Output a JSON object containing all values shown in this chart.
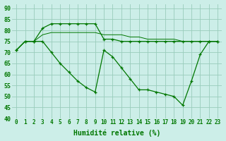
{
  "xlabel": "Humidité relative (%)",
  "background_color": "#cceee8",
  "grid_color": "#99ccbb",
  "line_color": "#007700",
  "xlim": [
    -0.5,
    23.5
  ],
  "ylim": [
    40,
    92
  ],
  "yticks": [
    40,
    45,
    50,
    55,
    60,
    65,
    70,
    75,
    80,
    85,
    90
  ],
  "xticks": [
    0,
    1,
    2,
    3,
    4,
    5,
    6,
    7,
    8,
    9,
    10,
    11,
    12,
    13,
    14,
    15,
    16,
    17,
    18,
    19,
    20,
    21,
    22,
    23
  ],
  "s1": [
    71,
    75,
    75,
    81,
    83,
    83,
    83,
    83,
    83,
    83,
    76,
    76,
    75,
    75,
    75,
    75,
    75,
    75,
    75,
    75,
    75,
    75,
    75,
    75
  ],
  "s2": [
    71,
    75,
    75,
    78,
    79,
    79,
    79,
    79,
    79,
    79,
    78,
    78,
    78,
    77,
    77,
    76,
    76,
    76,
    76,
    75,
    75,
    75,
    75,
    75
  ],
  "s3": [
    71,
    75,
    75,
    75,
    70,
    65,
    61,
    57,
    54,
    52,
    71,
    68,
    63,
    58,
    53,
    53,
    52,
    51,
    50,
    46,
    57,
    69,
    75,
    75
  ]
}
